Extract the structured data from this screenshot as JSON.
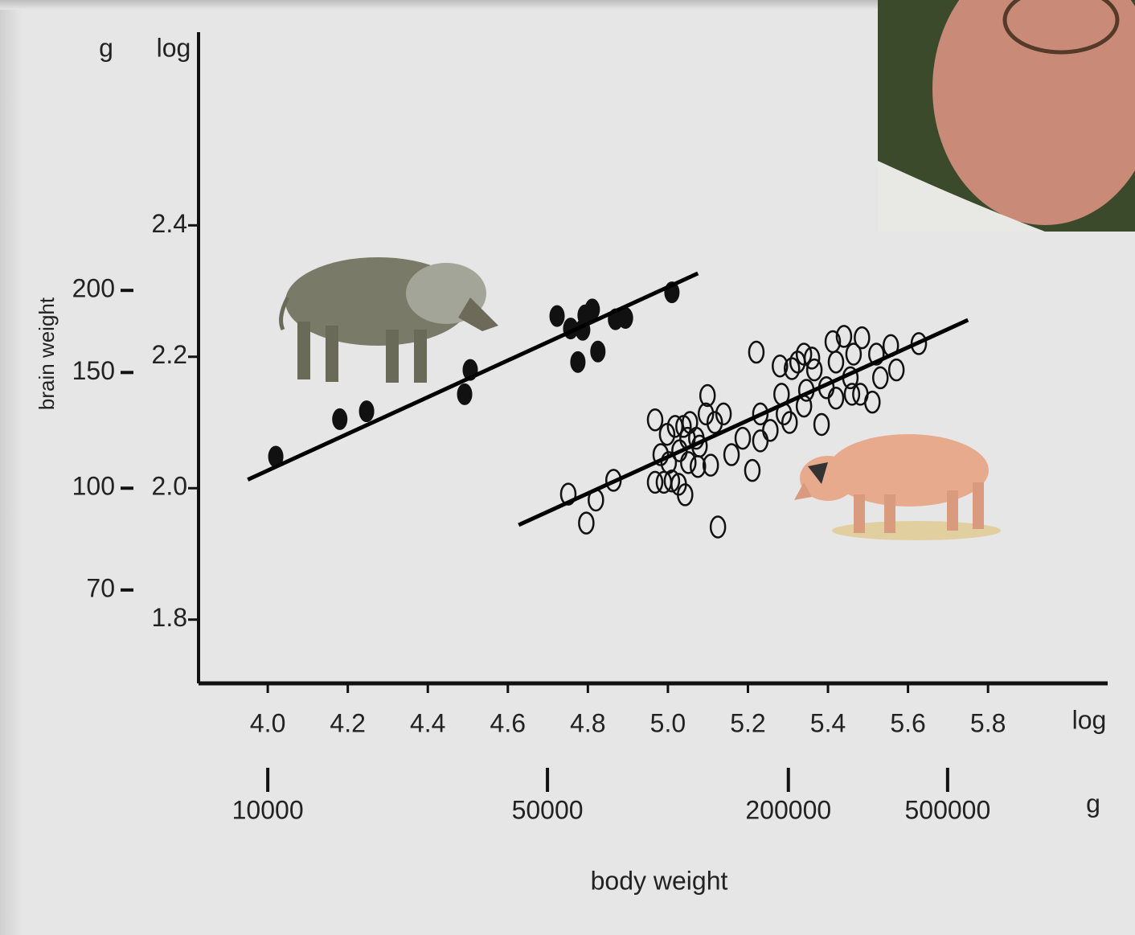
{
  "chart_data": {
    "type": "scatter",
    "x_label": "body weight",
    "y_label": "brain weight",
    "x_scale_label": "log",
    "y_scale_label": "log",
    "x2_unit_label": "g",
    "y2_unit_label": "g",
    "xlim": [
      3.827,
      6.099
    ],
    "ylim": [
      1.703,
      2.694
    ],
    "xticks": [
      {
        "value": 4.0,
        "label": "4.0"
      },
      4.2,
      4.4,
      4.6,
      4.8,
      {
        "value": 5.0,
        "label": "5.0"
      },
      5.2,
      5.4,
      5.6,
      5.8
    ],
    "yticks": [
      1.8,
      {
        "value": 2.0,
        "label": "2.0"
      },
      2.2,
      2.4
    ],
    "x2ticks": [
      10000,
      50000,
      200000,
      500000
    ],
    "x2_scale": "log10",
    "y2ticks": [
      70,
      100,
      150,
      200
    ],
    "y2_scale": "log10",
    "series": [
      {
        "marker": "filled",
        "color": "#111111",
        "x": [
          4.02,
          4.18,
          4.247,
          4.492,
          4.506,
          4.723,
          4.757,
          4.787,
          4.793,
          4.811,
          4.775,
          4.825,
          4.869,
          4.894,
          5.01
        ],
        "values": [
          2.048,
          2.105,
          2.117,
          2.143,
          2.18,
          2.262,
          2.243,
          2.241,
          2.263,
          2.272,
          2.192,
          2.208,
          2.257,
          2.259,
          2.298
        ]
      },
      {
        "marker": "open",
        "color": "#111111",
        "x": [
          4.751,
          4.82,
          4.796,
          4.864,
          4.968,
          4.968,
          4.99,
          5.01,
          5.027,
          5.043,
          4.998,
          5.018,
          5.039,
          5.055,
          5.071,
          5.095,
          5.099,
          5.117,
          5.139,
          4.982,
          5.002,
          5.029,
          5.051,
          5.075,
          5.107,
          5.125,
          5.159,
          5.187,
          5.211,
          5.231,
          5.231,
          5.221,
          5.256,
          5.28,
          5.284,
          5.304,
          5.31,
          5.324,
          5.34,
          5.36,
          5.346,
          5.366,
          5.384,
          5.396,
          5.412,
          5.42,
          5.44,
          5.456,
          5.464,
          5.485,
          5.481,
          5.511,
          5.521,
          5.531,
          5.557,
          5.571,
          5.627,
          5.29,
          5.34,
          5.42,
          5.46,
          5.079,
          5.049
        ],
        "values": [
          1.991,
          1.982,
          1.947,
          2.012,
          2.104,
          2.009,
          2.009,
          2.011,
          2.006,
          1.99,
          2.082,
          2.094,
          2.094,
          2.1,
          2.076,
          2.113,
          2.141,
          2.1,
          2.113,
          2.051,
          2.039,
          2.057,
          2.039,
          2.033,
          2.035,
          1.941,
          2.051,
          2.076,
          2.027,
          2.113,
          2.072,
          2.207,
          2.088,
          2.186,
          2.143,
          2.1,
          2.182,
          2.192,
          2.204,
          2.198,
          2.149,
          2.18,
          2.097,
          2.153,
          2.223,
          2.192,
          2.231,
          2.168,
          2.204,
          2.229,
          2.143,
          2.131,
          2.204,
          2.168,
          2.217,
          2.18,
          2.22,
          2.113,
          2.125,
          2.137,
          2.143,
          2.064,
          2.076
        ]
      },
      {
        "marker": "line",
        "color": "#000000",
        "x": [
          3.95,
          5.075
        ],
        "values": [
          2.013,
          2.327
        ]
      },
      {
        "marker": "line",
        "color": "#000000",
        "x": [
          4.627,
          5.75
        ],
        "values": [
          1.944,
          2.256
        ]
      }
    ]
  }
}
